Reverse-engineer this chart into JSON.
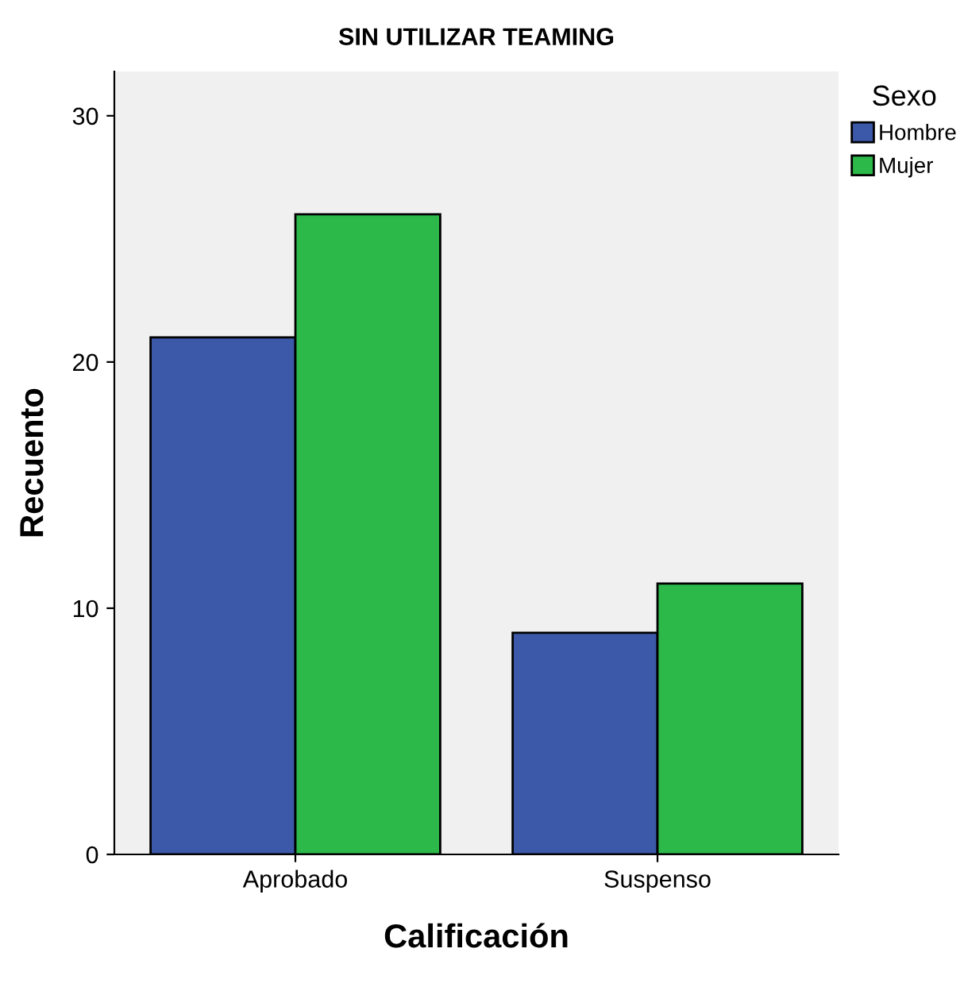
{
  "chart_data": {
    "type": "bar",
    "title": "SIN UTILIZAR TEAMING",
    "xlabel": "Calificación",
    "ylabel": "Recuento",
    "legend_title": "Sexo",
    "categories": [
      "Aprobado",
      "Suspenso"
    ],
    "series": [
      {
        "name": "Hombre",
        "color": "#3c58a8",
        "values": [
          21,
          9
        ]
      },
      {
        "name": "Mujer",
        "color": "#2db84a",
        "values": [
          26,
          11
        ]
      }
    ],
    "ylim": [
      0,
      31.8
    ],
    "yticks": [
      0,
      10,
      20,
      30
    ],
    "grid": false,
    "legend": "right"
  }
}
